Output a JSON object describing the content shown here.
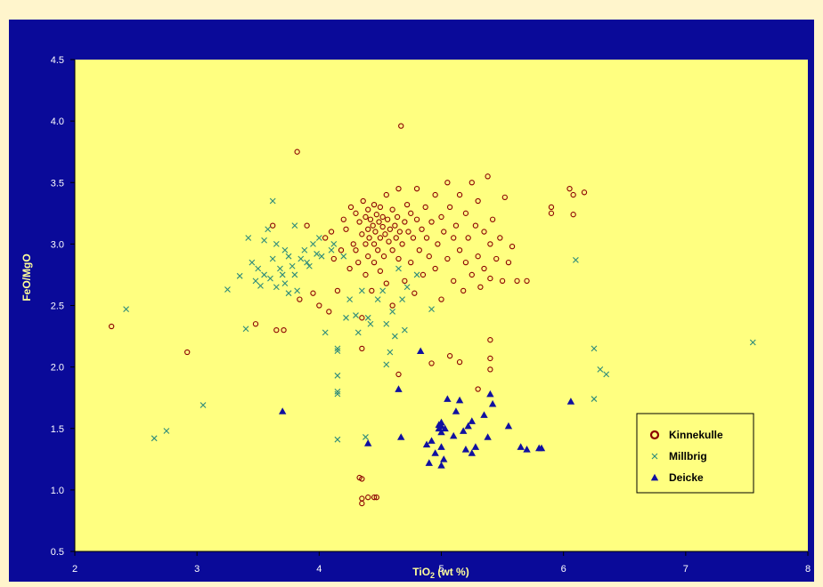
{
  "chart_data": {
    "type": "scatter",
    "xlabel": "TiO",
    "xlabel_sub": "2",
    "xlabel_suffix": " (wt %)",
    "ylabel": "FeO/MgO",
    "xlim": [
      2,
      8
    ],
    "ylim": [
      0.5,
      4.5
    ],
    "xticks": [
      "2",
      "3",
      "4",
      "5",
      "6",
      "7",
      "8"
    ],
    "yticks": [
      "0.5",
      "1.0",
      "1.5",
      "2.0",
      "2.5",
      "3.0",
      "3.5",
      "4.0",
      "4.5"
    ],
    "grid": false,
    "legend_position": "bottom-right",
    "colors": {
      "frame": "#0A0A99",
      "plot_area": "#FFFF80",
      "page": "#FFF5CC",
      "axis_title": "#FFFF99",
      "Kinnekulle": "#8B0000",
      "Millbrig": "#2E8B7A",
      "Deicke": "#1010A0"
    },
    "series": [
      {
        "name": "Kinnekulle",
        "marker": "open-circle",
        "points": [
          [
            2.3,
            2.33
          ],
          [
            2.92,
            2.12
          ],
          [
            3.48,
            2.35
          ],
          [
            3.62,
            3.15
          ],
          [
            3.65,
            2.3
          ],
          [
            3.71,
            2.3
          ],
          [
            3.82,
            3.75
          ],
          [
            3.84,
            2.55
          ],
          [
            3.9,
            3.15
          ],
          [
            3.95,
            2.6
          ],
          [
            4.0,
            2.5
          ],
          [
            4.05,
            3.05
          ],
          [
            4.08,
            2.45
          ],
          [
            4.1,
            3.1
          ],
          [
            4.12,
            2.88
          ],
          [
            4.15,
            2.62
          ],
          [
            4.18,
            2.95
          ],
          [
            4.2,
            3.2
          ],
          [
            4.22,
            3.12
          ],
          [
            4.25,
            2.8
          ],
          [
            4.26,
            3.3
          ],
          [
            4.28,
            3.0
          ],
          [
            4.3,
            3.25
          ],
          [
            4.3,
            2.95
          ],
          [
            4.32,
            2.85
          ],
          [
            4.33,
            3.18
          ],
          [
            4.35,
            3.08
          ],
          [
            4.35,
            2.4
          ],
          [
            4.35,
            2.15
          ],
          [
            4.36,
            3.35
          ],
          [
            4.38,
            3.22
          ],
          [
            4.38,
            3.0
          ],
          [
            4.38,
            2.75
          ],
          [
            4.4,
            3.28
          ],
          [
            4.4,
            3.12
          ],
          [
            4.4,
            2.9
          ],
          [
            4.41,
            3.05
          ],
          [
            4.42,
            3.2
          ],
          [
            4.43,
            2.62
          ],
          [
            4.44,
            3.15
          ],
          [
            4.45,
            3.32
          ],
          [
            4.45,
            3.0
          ],
          [
            4.45,
            2.85
          ],
          [
            4.46,
            3.1
          ],
          [
            4.47,
            3.24
          ],
          [
            4.48,
            2.95
          ],
          [
            4.49,
            3.18
          ],
          [
            4.5,
            3.05
          ],
          [
            4.5,
            3.3
          ],
          [
            4.5,
            2.78
          ],
          [
            4.52,
            3.14
          ],
          [
            4.52,
            3.22
          ],
          [
            4.53,
            2.9
          ],
          [
            4.54,
            3.08
          ],
          [
            4.55,
            3.4
          ],
          [
            4.55,
            2.68
          ],
          [
            4.56,
            3.2
          ],
          [
            4.57,
            3.02
          ],
          [
            4.58,
            3.12
          ],
          [
            4.6,
            3.28
          ],
          [
            4.6,
            2.95
          ],
          [
            4.6,
            2.5
          ],
          [
            4.62,
            3.15
          ],
          [
            4.63,
            3.05
          ],
          [
            4.64,
            3.22
          ],
          [
            4.65,
            2.88
          ],
          [
            4.65,
            3.45
          ],
          [
            4.66,
            3.1
          ],
          [
            4.67,
            3.96
          ],
          [
            4.68,
            3.0
          ],
          [
            4.7,
            3.18
          ],
          [
            4.7,
            2.7
          ],
          [
            4.72,
            3.32
          ],
          [
            4.73,
            3.1
          ],
          [
            4.75,
            2.85
          ],
          [
            4.75,
            3.25
          ],
          [
            4.77,
            3.05
          ],
          [
            4.78,
            2.6
          ],
          [
            4.8,
            3.2
          ],
          [
            4.8,
            3.45
          ],
          [
            4.82,
            2.95
          ],
          [
            4.84,
            3.12
          ],
          [
            4.85,
            2.75
          ],
          [
            4.87,
            3.3
          ],
          [
            4.88,
            3.05
          ],
          [
            4.9,
            2.9
          ],
          [
            4.92,
            3.18
          ],
          [
            4.95,
            3.4
          ],
          [
            4.95,
            2.8
          ],
          [
            4.97,
            3.0
          ],
          [
            5.0,
            3.22
          ],
          [
            5.0,
            2.55
          ],
          [
            5.02,
            3.1
          ],
          [
            5.05,
            2.88
          ],
          [
            5.05,
            3.5
          ],
          [
            5.07,
            3.3
          ],
          [
            5.1,
            2.7
          ],
          [
            5.1,
            3.05
          ],
          [
            5.12,
            3.15
          ],
          [
            5.15,
            2.95
          ],
          [
            5.15,
            3.4
          ],
          [
            5.18,
            2.62
          ],
          [
            5.2,
            3.25
          ],
          [
            5.2,
            2.85
          ],
          [
            5.22,
            3.05
          ],
          [
            5.25,
            2.75
          ],
          [
            5.25,
            3.5
          ],
          [
            5.28,
            3.15
          ],
          [
            5.3,
            2.9
          ],
          [
            5.3,
            3.35
          ],
          [
            5.32,
            2.65
          ],
          [
            5.35,
            3.1
          ],
          [
            5.35,
            2.8
          ],
          [
            5.38,
            3.55
          ],
          [
            5.4,
            3.0
          ],
          [
            5.4,
            2.72
          ],
          [
            5.42,
            3.2
          ],
          [
            5.45,
            2.88
          ],
          [
            5.48,
            3.05
          ],
          [
            5.5,
            2.7
          ],
          [
            5.52,
            3.38
          ],
          [
            5.55,
            2.85
          ],
          [
            5.58,
            2.98
          ],
          [
            5.62,
            2.7
          ],
          [
            5.7,
            2.7
          ],
          [
            5.9,
            3.3
          ],
          [
            5.9,
            3.25
          ],
          [
            6.05,
            3.45
          ],
          [
            6.08,
            3.24
          ],
          [
            6.08,
            3.4
          ],
          [
            6.17,
            3.42
          ],
          [
            4.65,
            1.94
          ],
          [
            4.92,
            2.03
          ],
          [
            5.07,
            2.09
          ],
          [
            5.15,
            2.04
          ],
          [
            5.3,
            1.82
          ],
          [
            5.4,
            2.22
          ],
          [
            5.4,
            2.07
          ],
          [
            5.4,
            1.98
          ],
          [
            4.33,
            1.1
          ],
          [
            4.35,
            1.09
          ],
          [
            4.35,
            0.93
          ],
          [
            4.35,
            0.89
          ],
          [
            4.4,
            0.94
          ],
          [
            4.45,
            0.94
          ],
          [
            4.47,
            0.94
          ]
        ]
      },
      {
        "name": "Millbrig",
        "marker": "x",
        "points": [
          [
            2.42,
            2.47
          ],
          [
            2.65,
            1.42
          ],
          [
            2.75,
            1.48
          ],
          [
            3.05,
            1.69
          ],
          [
            3.25,
            2.63
          ],
          [
            3.35,
            2.74
          ],
          [
            3.4,
            2.31
          ],
          [
            3.42,
            3.05
          ],
          [
            3.45,
            2.85
          ],
          [
            3.48,
            2.7
          ],
          [
            3.5,
            2.8
          ],
          [
            3.52,
            2.66
          ],
          [
            3.55,
            2.75
          ],
          [
            3.55,
            3.03
          ],
          [
            3.58,
            3.12
          ],
          [
            3.6,
            2.72
          ],
          [
            3.62,
            3.35
          ],
          [
            3.62,
            2.88
          ],
          [
            3.65,
            3.0
          ],
          [
            3.65,
            2.65
          ],
          [
            3.68,
            2.8
          ],
          [
            3.7,
            2.75
          ],
          [
            3.72,
            2.95
          ],
          [
            3.72,
            2.68
          ],
          [
            3.75,
            2.9
          ],
          [
            3.75,
            2.6
          ],
          [
            3.78,
            2.82
          ],
          [
            3.8,
            3.15
          ],
          [
            3.8,
            2.75
          ],
          [
            3.82,
            2.62
          ],
          [
            3.85,
            2.88
          ],
          [
            3.88,
            2.95
          ],
          [
            3.9,
            2.85
          ],
          [
            3.92,
            2.82
          ],
          [
            3.95,
            3.0
          ],
          [
            3.98,
            2.92
          ],
          [
            4.0,
            3.05
          ],
          [
            4.02,
            2.9
          ],
          [
            4.05,
            2.28
          ],
          [
            4.1,
            2.95
          ],
          [
            4.12,
            3.0
          ],
          [
            4.15,
            1.93
          ],
          [
            4.15,
            2.15
          ],
          [
            4.15,
            2.13
          ],
          [
            4.15,
            1.8
          ],
          [
            4.15,
            1.78
          ],
          [
            4.15,
            1.41
          ],
          [
            4.2,
            2.9
          ],
          [
            4.22,
            2.4
          ],
          [
            4.25,
            2.55
          ],
          [
            4.3,
            2.42
          ],
          [
            4.32,
            2.28
          ],
          [
            4.35,
            2.62
          ],
          [
            4.38,
            1.43
          ],
          [
            4.4,
            2.4
          ],
          [
            4.42,
            2.35
          ],
          [
            4.48,
            2.55
          ],
          [
            4.52,
            2.62
          ],
          [
            4.55,
            2.35
          ],
          [
            4.55,
            2.02
          ],
          [
            4.58,
            2.12
          ],
          [
            4.6,
            2.45
          ],
          [
            4.62,
            2.25
          ],
          [
            4.65,
            2.8
          ],
          [
            4.68,
            2.55
          ],
          [
            4.7,
            2.3
          ],
          [
            4.72,
            2.65
          ],
          [
            4.8,
            2.75
          ],
          [
            4.92,
            2.47
          ],
          [
            6.1,
            2.87
          ],
          [
            6.25,
            1.74
          ],
          [
            6.25,
            2.15
          ],
          [
            6.3,
            1.98
          ],
          [
            6.35,
            1.94
          ],
          [
            7.55,
            2.2
          ]
        ]
      },
      {
        "name": "Deicke",
        "marker": "filled-triangle",
        "points": [
          [
            3.7,
            1.64
          ],
          [
            4.4,
            1.38
          ],
          [
            4.65,
            1.82
          ],
          [
            4.67,
            1.43
          ],
          [
            4.83,
            2.13
          ],
          [
            4.88,
            1.37
          ],
          [
            4.9,
            1.22
          ],
          [
            4.92,
            1.4
          ],
          [
            4.95,
            1.3
          ],
          [
            4.98,
            1.5
          ],
          [
            4.98,
            1.53
          ],
          [
            5.0,
            1.55
          ],
          [
            5.0,
            1.47
          ],
          [
            5.0,
            1.52
          ],
          [
            5.0,
            1.35
          ],
          [
            5.0,
            1.2
          ],
          [
            5.02,
            1.25
          ],
          [
            5.03,
            1.5
          ],
          [
            5.05,
            1.74
          ],
          [
            5.1,
            1.44
          ],
          [
            5.12,
            1.64
          ],
          [
            5.15,
            1.73
          ],
          [
            5.18,
            1.48
          ],
          [
            5.2,
            1.33
          ],
          [
            5.22,
            1.52
          ],
          [
            5.25,
            1.56
          ],
          [
            5.25,
            1.3
          ],
          [
            5.28,
            1.35
          ],
          [
            5.35,
            1.61
          ],
          [
            5.38,
            1.43
          ],
          [
            5.4,
            1.78
          ],
          [
            5.42,
            1.7
          ],
          [
            5.55,
            1.52
          ],
          [
            5.65,
            1.35
          ],
          [
            5.7,
            1.33
          ],
          [
            5.8,
            1.34
          ],
          [
            5.82,
            1.34
          ],
          [
            6.06,
            1.72
          ]
        ]
      }
    ]
  }
}
